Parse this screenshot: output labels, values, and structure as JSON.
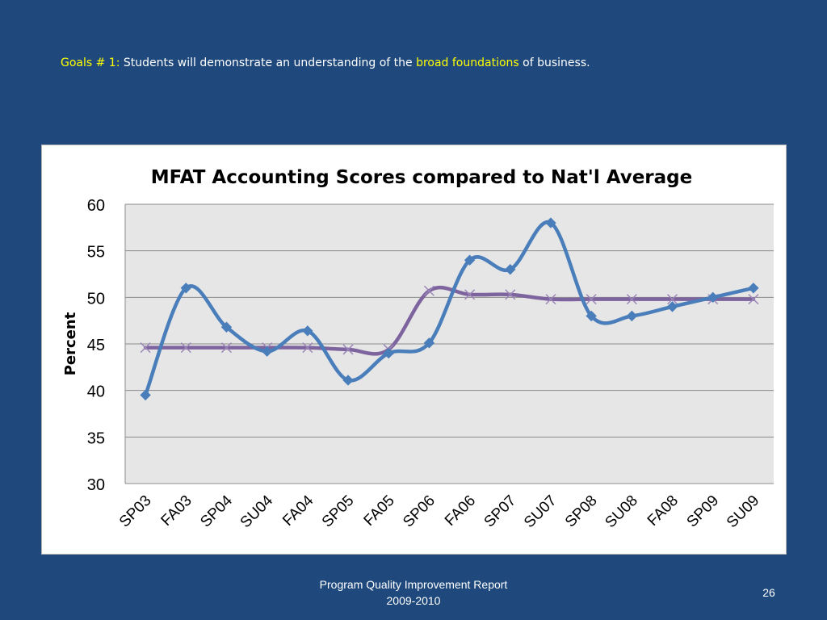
{
  "slide": {
    "goal_label": "Goals # 1:",
    "goal_text_before": "Students will demonstrate an understanding of the",
    "goal_highlight": "broad foundations",
    "goal_text_after": "of business.",
    "footer_line1": "Program Quality Improvement Report",
    "footer_line2": "2009-2010",
    "page_number": "26"
  },
  "colors": {
    "background": "#1f497d",
    "highlight_text": "#ffff00",
    "school_series": "#4a7ebb",
    "national_series": "#7e649e",
    "plot_area": "#e6e6e6"
  },
  "chart_data": {
    "type": "line",
    "title": "MFAT Accounting Scores compared to Nat'l Average",
    "xlabel": "",
    "ylabel": "Percent",
    "ylim": [
      30,
      60
    ],
    "yticks": [
      30,
      35,
      40,
      45,
      50,
      55,
      60
    ],
    "grid": true,
    "legend": "none",
    "categories": [
      "SP03",
      "FA03",
      "SP04",
      "SU04",
      "FA04",
      "SP05",
      "FA05",
      "SP06",
      "FA06",
      "SP07",
      "SU07",
      "SP08",
      "SU08",
      "FA08",
      "SP09",
      "SU09"
    ],
    "series": [
      {
        "marker": "diamond",
        "values": [
          39.5,
          51,
          46.8,
          44.2,
          46.4,
          41.1,
          44,
          45.1,
          54,
          53,
          58,
          48,
          48,
          49,
          50,
          51
        ]
      },
      {
        "marker": "x",
        "values": [
          44.6,
          44.6,
          44.6,
          44.6,
          44.6,
          44.4,
          44.4,
          50.7,
          50.3,
          50.3,
          49.8,
          49.8,
          49.8,
          49.8,
          49.8,
          49.8
        ]
      }
    ]
  }
}
